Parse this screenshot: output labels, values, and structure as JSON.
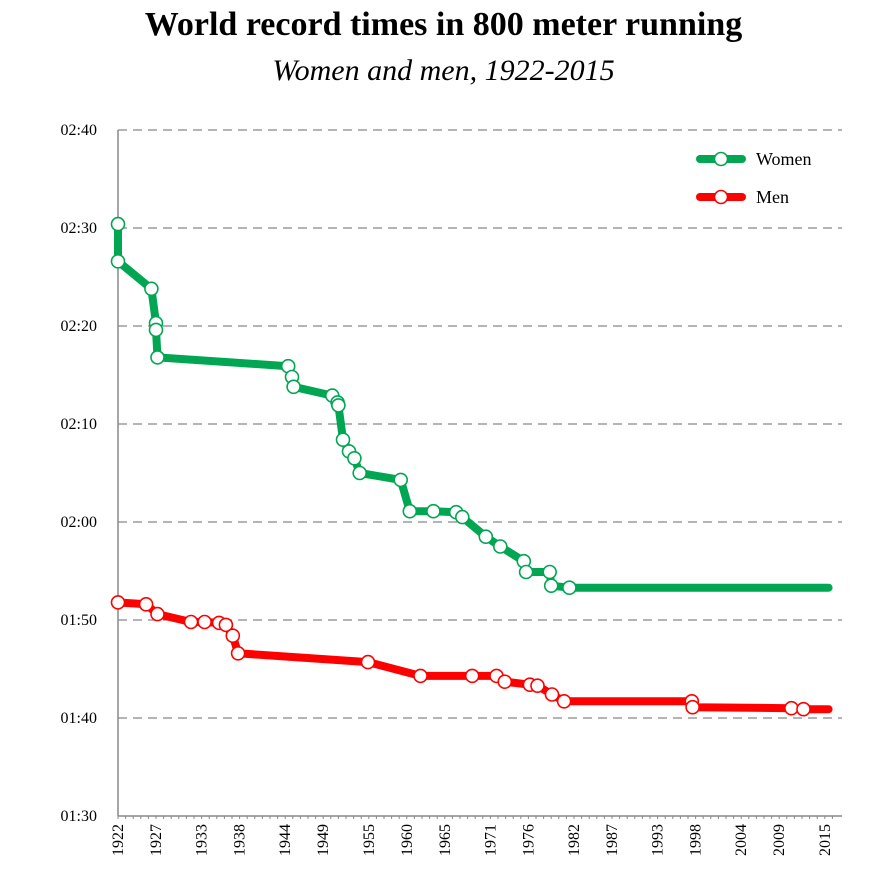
{
  "chart_data": {
    "type": "line",
    "title": "World record times in 800 meter running",
    "subtitle": "Women and men, 1922-2015",
    "xlabel": "",
    "ylabel": "",
    "xlim": [
      1922,
      2016
    ],
    "ylim_seconds": [
      90,
      160
    ],
    "y_ticks": [
      {
        "label": "02:40",
        "value": 160
      },
      {
        "label": "02:30",
        "value": 150
      },
      {
        "label": "02:20",
        "value": 140
      },
      {
        "label": "02:10",
        "value": 130
      },
      {
        "label": "02:00",
        "value": 120
      },
      {
        "label": "01:50",
        "value": 110
      },
      {
        "label": "01:40",
        "value": 100
      },
      {
        "label": "01:30",
        "value": 90
      }
    ],
    "x_ticks": [
      1922,
      1927,
      1933,
      1938,
      1944,
      1949,
      1955,
      1960,
      1965,
      1971,
      1976,
      1982,
      1987,
      1993,
      1998,
      2004,
      2009,
      2015
    ],
    "grid": "horizontal dashed",
    "legend_position": "top-right",
    "series": [
      {
        "name": "Women",
        "color": "#00a651",
        "points": [
          [
            1922.0,
            150.4
          ],
          [
            1922.0,
            146.6
          ],
          [
            1926.4,
            143.8
          ],
          [
            1927.0,
            140.3
          ],
          [
            1927.0,
            139.6
          ],
          [
            1927.2,
            136.8
          ],
          [
            1944.4,
            135.9
          ],
          [
            1944.9,
            134.8
          ],
          [
            1945.1,
            133.8
          ],
          [
            1950.2,
            132.9
          ],
          [
            1950.9,
            132.2
          ],
          [
            1951.0,
            131.9
          ],
          [
            1951.6,
            128.4
          ],
          [
            1952.4,
            127.2
          ],
          [
            1953.1,
            126.5
          ],
          [
            1953.8,
            125.0
          ],
          [
            1959.2,
            124.3
          ],
          [
            1960.4,
            121.1
          ],
          [
            1963.5,
            121.1
          ],
          [
            1966.5,
            121.0
          ],
          [
            1967.3,
            120.5
          ],
          [
            1970.4,
            118.5
          ],
          [
            1972.3,
            117.5
          ],
          [
            1975.4,
            116.0
          ],
          [
            1975.7,
            114.9
          ],
          [
            1978.8,
            114.9
          ],
          [
            1979.0,
            113.5
          ],
          [
            1981.4,
            113.3
          ]
        ],
        "end_year": 2015.5,
        "end_value": 113.3
      },
      {
        "name": "Men",
        "color": "#ff0000",
        "points": [
          [
            1922.0,
            111.8
          ],
          [
            1925.7,
            111.6
          ],
          [
            1927.2,
            110.6
          ],
          [
            1931.6,
            109.8
          ],
          [
            1933.4,
            109.8
          ],
          [
            1935.3,
            109.7
          ],
          [
            1936.2,
            109.5
          ],
          [
            1937.1,
            108.4
          ],
          [
            1937.8,
            106.6
          ],
          [
            1954.9,
            105.7
          ],
          [
            1961.8,
            104.3
          ],
          [
            1968.6,
            104.3
          ],
          [
            1971.8,
            104.3
          ],
          [
            1972.9,
            103.7
          ],
          [
            1976.2,
            103.4
          ],
          [
            1977.2,
            103.3
          ],
          [
            1979.1,
            102.4
          ],
          [
            1980.7,
            101.7
          ],
          [
            1997.5,
            101.7
          ],
          [
            1997.6,
            101.1
          ],
          [
            2010.6,
            101.0
          ],
          [
            2012.2,
            100.9
          ]
        ],
        "end_year": 2015.5,
        "end_value": 100.9
      }
    ]
  }
}
